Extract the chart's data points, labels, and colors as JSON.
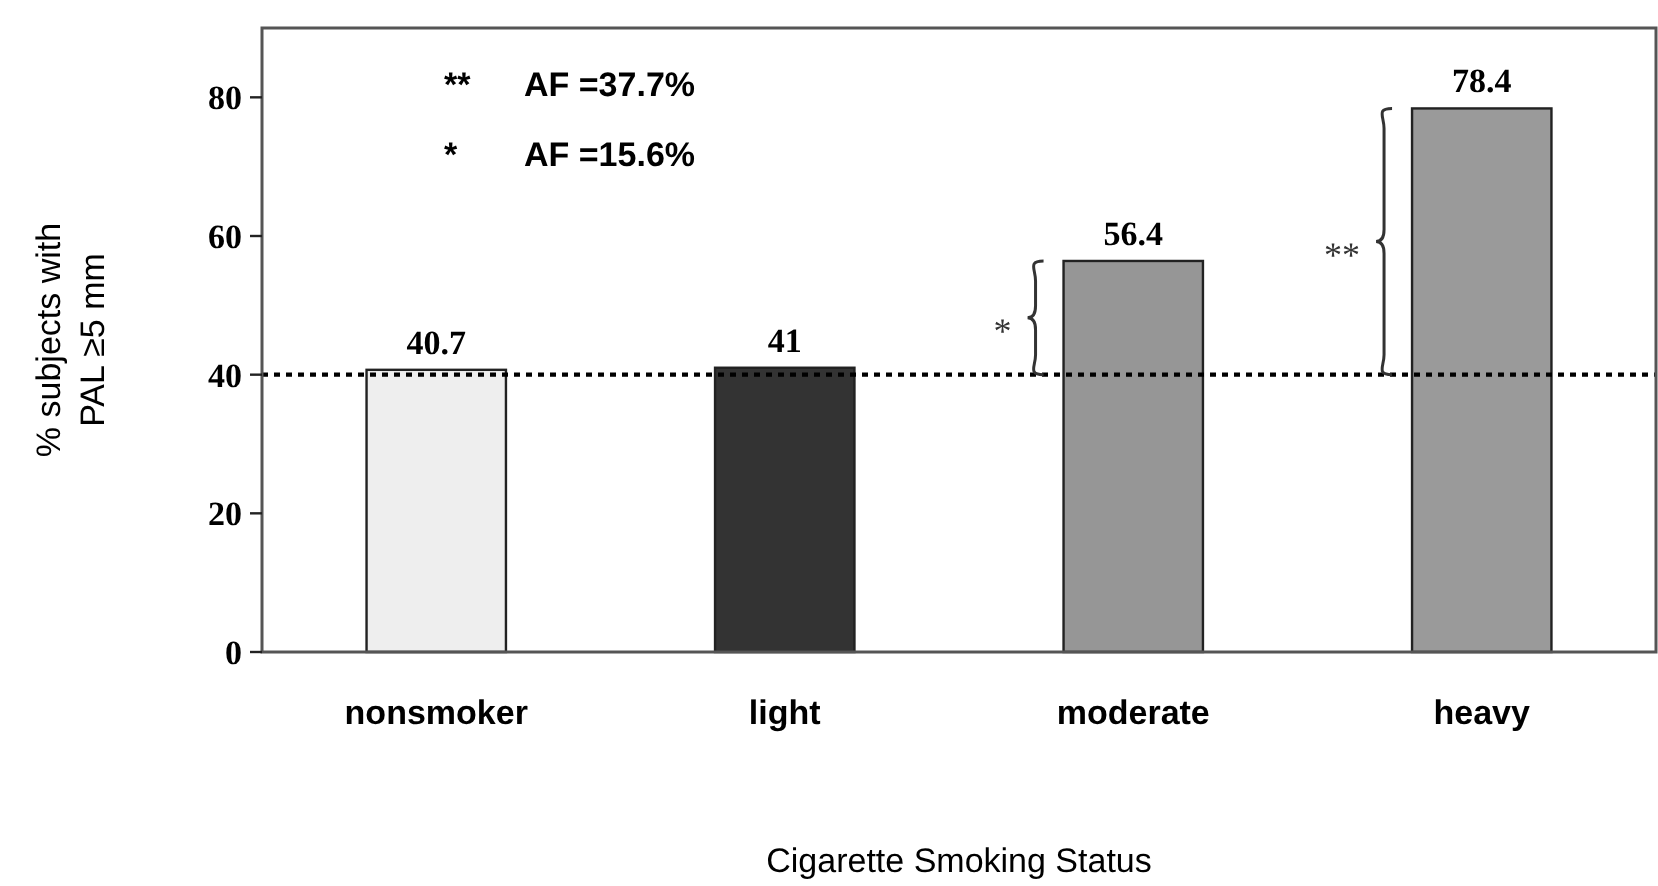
{
  "chart_data": {
    "type": "bar",
    "xlabel": "Cigarette Smoking Status",
    "ylabel": "% subjects with\nPAL ≥5 mm",
    "categories": [
      "nonsmoker",
      "light",
      "moderate",
      "heavy"
    ],
    "values": [
      40.7,
      41,
      56.4,
      78.4
    ],
    "colors": [
      "#eeeeee",
      "#333333",
      "#969696",
      "#9a9a9a"
    ],
    "data_labels": true,
    "ylim": [
      0,
      90
    ],
    "yticks": [
      0,
      20,
      40,
      60,
      80
    ],
    "ref_lines": [
      {
        "axis": "y",
        "value": 40,
        "line_style": "dotted",
        "color": "#000000"
      }
    ],
    "annotations": [
      "** AF =37.7%",
      "* AF =15.6%",
      "*",
      "**"
    ]
  }
}
